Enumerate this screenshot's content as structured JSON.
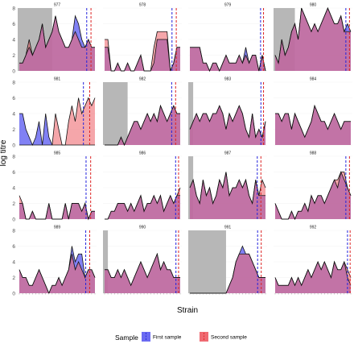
{
  "chart_data": {
    "type": "area",
    "xlabel": "Strain",
    "ylabel": "log titre",
    "ylim": [
      0,
      8
    ],
    "yticks": [
      0,
      2,
      4,
      6,
      8
    ],
    "legend": {
      "title": "Sample",
      "placement": "bottom",
      "entries": [
        {
          "name": "First sample",
          "fill": "#6b6bf2",
          "line": "#2c2cd6"
        },
        {
          "name": "Second sample",
          "fill": "#ef6a72",
          "line": "#e02a2a"
        }
      ]
    },
    "colors": {
      "overlap": "#a0336b",
      "shade": "#b7b7b7",
      "first_line": "#2222dd",
      "second_line": "#dd2222"
    },
    "n_strains": 24,
    "panels": [
      {
        "id": "977",
        "shade": [
          0,
          10
        ],
        "vline_first": 20.5,
        "vline_second": 21.8,
        "first": [
          1,
          1,
          2,
          3,
          2,
          3,
          4,
          6,
          3,
          4,
          5,
          7,
          5,
          4,
          3,
          3,
          4,
          7,
          6,
          4,
          3,
          4,
          3,
          3
        ],
        "second": [
          1,
          1,
          2,
          4,
          2,
          3,
          4,
          6,
          3,
          4,
          5,
          7,
          5,
          4,
          3,
          3,
          4,
          5,
          4,
          3,
          3,
          4,
          3,
          3
        ]
      },
      {
        "id": "978",
        "shade": null,
        "vline_first": 20.5,
        "vline_second": 21.8,
        "first": [
          3,
          3,
          0,
          0,
          1,
          0,
          0,
          1,
          0,
          0,
          1,
          2,
          0,
          0,
          0,
          1,
          4,
          4,
          4,
          4,
          0,
          1,
          3,
          3
        ],
        "second": [
          4,
          4,
          0,
          0,
          1,
          0,
          0,
          1,
          0,
          0,
          1,
          2,
          0,
          0,
          0,
          3,
          5,
          5,
          5,
          5,
          0,
          1,
          3,
          3
        ]
      },
      {
        "id": "979",
        "shade": null,
        "vline_first": 21.5,
        "vline_second": 22.4,
        "first": [
          3,
          3,
          3,
          3,
          1,
          1,
          0,
          1,
          1,
          0,
          1,
          2,
          1,
          1,
          1,
          2,
          1,
          3,
          1,
          2,
          2,
          0,
          2,
          0
        ],
        "second": [
          3,
          3,
          3,
          3,
          1,
          1,
          0,
          1,
          1,
          0,
          1,
          2,
          1,
          1,
          1,
          2,
          1,
          2,
          1,
          2,
          2,
          0,
          2,
          0
        ]
      },
      {
        "id": "980",
        "shade": [
          0,
          6
        ],
        "vline_first": 21.5,
        "vline_second": 22.6,
        "first": [
          2,
          1,
          4,
          2,
          3,
          5,
          6,
          4,
          8,
          7,
          6,
          5,
          6,
          5,
          6,
          7,
          8,
          7,
          6,
          6,
          7,
          5,
          6,
          5
        ],
        "second": [
          2,
          1,
          4,
          2,
          3,
          5,
          6,
          4,
          8,
          7,
          6,
          5,
          6,
          5,
          6,
          7,
          8,
          7,
          6,
          6,
          7,
          5,
          5,
          5
        ]
      },
      {
        "id": "981",
        "shade": null,
        "vline_first": 19.5,
        "vline_second": 21.4,
        "first": [
          4,
          4,
          2,
          1,
          0,
          1,
          3,
          0,
          4,
          1,
          0,
          0,
          0,
          0,
          0,
          0,
          0,
          0,
          0,
          0,
          0,
          0,
          0,
          0
        ],
        "second": [
          0,
          0,
          0,
          0,
          0,
          0,
          0,
          0,
          0,
          0,
          0,
          4,
          2,
          0,
          0,
          3,
          5,
          3,
          6,
          4,
          5,
          6,
          5,
          6
        ]
      },
      {
        "id": "982",
        "shade": [
          0,
          7
        ],
        "vline_first": 20.4,
        "vline_second": 21.6,
        "first": [
          0,
          0,
          0,
          0,
          0,
          1,
          0,
          1,
          2,
          3,
          3,
          2,
          3,
          4,
          3,
          4,
          3,
          5,
          4,
          3,
          4,
          5,
          4,
          4
        ],
        "second": [
          0,
          0,
          0,
          0,
          0,
          1,
          0,
          1,
          2,
          3,
          3,
          2,
          3,
          4,
          3,
          4,
          3,
          5,
          4,
          3,
          4,
          5,
          4,
          4
        ]
      },
      {
        "id": "983",
        "shade": [
          0,
          1
        ],
        "vline_first": 21.6,
        "vline_second": 22.4,
        "first": [
          2,
          3,
          4,
          3,
          4,
          4,
          3,
          4,
          4,
          5,
          4,
          2,
          4,
          3,
          4,
          5,
          4,
          2,
          1,
          4,
          1,
          2,
          1,
          3
        ],
        "second": [
          2,
          3,
          4,
          3,
          4,
          4,
          3,
          4,
          4,
          5,
          4,
          2,
          4,
          3,
          4,
          5,
          4,
          2,
          1,
          4,
          1,
          2,
          1,
          3
        ]
      },
      {
        "id": "984",
        "shade": null,
        "vline_first": null,
        "vline_second": null,
        "first": [
          4,
          4,
          3,
          4,
          4,
          2,
          4,
          3,
          2,
          1,
          2,
          3,
          5,
          4,
          3,
          3,
          2,
          3,
          4,
          3,
          2,
          3,
          3,
          3
        ],
        "second": [
          4,
          4,
          3,
          4,
          4,
          2,
          4,
          3,
          2,
          1,
          2,
          3,
          5,
          4,
          3,
          3,
          2,
          3,
          4,
          3,
          2,
          3,
          3,
          3
        ]
      },
      {
        "id": "985",
        "shade": null,
        "vline_first": 20.3,
        "vline_second": 21.7,
        "first": [
          2,
          2,
          0,
          0,
          1,
          0,
          0,
          0,
          0,
          2,
          0,
          0,
          0,
          0,
          2,
          0,
          2,
          2,
          2,
          1,
          2,
          0,
          1,
          1
        ],
        "second": [
          3,
          2,
          0,
          0,
          1,
          0,
          0,
          0,
          0,
          2,
          0,
          0,
          0,
          0,
          2,
          0,
          2,
          2,
          2,
          1,
          2,
          0,
          1,
          1
        ]
      },
      {
        "id": "986",
        "shade": null,
        "vline_first": 21.6,
        "vline_second": 22.5,
        "first": [
          0,
          0,
          1,
          1,
          2,
          2,
          2,
          1,
          2,
          1,
          2,
          3,
          1,
          2,
          2,
          3,
          2,
          3,
          1,
          2,
          3,
          2,
          3,
          3
        ],
        "second": [
          0,
          0,
          1,
          1,
          2,
          2,
          2,
          1,
          2,
          1,
          2,
          3,
          1,
          2,
          2,
          3,
          2,
          3,
          1,
          2,
          3,
          2,
          3,
          4
        ]
      },
      {
        "id": "987",
        "shade": [
          0,
          1
        ],
        "vline_first": 20.5,
        "vline_second": 21.6,
        "first": [
          4,
          5,
          3,
          2,
          5,
          3,
          4,
          2,
          3,
          5,
          4,
          6,
          3,
          4,
          4,
          5,
          4,
          5,
          3,
          2,
          5,
          3,
          3,
          3
        ],
        "second": [
          4,
          5,
          3,
          2,
          5,
          3,
          4,
          2,
          3,
          5,
          4,
          6,
          3,
          4,
          4,
          5,
          4,
          5,
          3,
          2,
          5,
          3,
          5,
          4
        ]
      },
      {
        "id": "988",
        "shade": null,
        "vline_first": 21.5,
        "vline_second": 22.6,
        "first": [
          2,
          1,
          0,
          0,
          0,
          1,
          0,
          1,
          1,
          2,
          1,
          3,
          2,
          3,
          3,
          2,
          3,
          4,
          5,
          4,
          6,
          5,
          4,
          3
        ],
        "second": [
          2,
          1,
          0,
          0,
          0,
          1,
          0,
          1,
          1,
          2,
          1,
          3,
          2,
          3,
          3,
          2,
          3,
          4,
          5,
          5,
          6,
          6,
          4,
          3
        ]
      },
      {
        "id": "989",
        "shade": null,
        "vline_first": 20.2,
        "vline_second": 21.4,
        "first": [
          3,
          2,
          2,
          1,
          1,
          2,
          3,
          2,
          1,
          0,
          1,
          1,
          2,
          1,
          2,
          3,
          6,
          4,
          5,
          5,
          2,
          3,
          3,
          2
        ],
        "second": [
          3,
          2,
          2,
          1,
          1,
          2,
          3,
          2,
          1,
          0,
          1,
          1,
          2,
          1,
          2,
          3,
          5,
          3,
          4,
          3,
          2,
          3,
          3,
          2
        ]
      },
      {
        "id": "990",
        "shade": [
          0,
          1
        ],
        "vline_first": 21.7,
        "vline_second": 22.5,
        "first": [
          3,
          3,
          2,
          2,
          3,
          2,
          3,
          2,
          1,
          2,
          3,
          4,
          3,
          2,
          3,
          4,
          5,
          3,
          4,
          3,
          3,
          2,
          2,
          2
        ],
        "second": [
          3,
          3,
          2,
          2,
          3,
          2,
          3,
          2,
          1,
          2,
          3,
          4,
          3,
          2,
          3,
          4,
          5,
          3,
          4,
          3,
          3,
          2,
          2,
          2
        ]
      },
      {
        "id": "991",
        "shade": [
          0,
          11
        ],
        "vline_first": 20.6,
        "vline_second": 21.7,
        "first": [
          0,
          0,
          0,
          0,
          0,
          0,
          0,
          0,
          0,
          0,
          0,
          0,
          1,
          2,
          4,
          5,
          6,
          5,
          5,
          4,
          3,
          2,
          2,
          2
        ],
        "second": [
          0,
          0,
          0,
          0,
          0,
          0,
          0,
          0,
          0,
          0,
          0,
          0,
          1,
          2,
          4,
          5,
          5,
          5,
          5,
          4,
          3,
          2,
          2,
          2
        ]
      },
      {
        "id": "992",
        "shade": null,
        "vline_first": 22.0,
        "vline_second": 22.8,
        "first": [
          2,
          1,
          1,
          1,
          1,
          2,
          1,
          2,
          1,
          2,
          3,
          2,
          3,
          4,
          3,
          4,
          3,
          2,
          4,
          3,
          3,
          4,
          2,
          1
        ],
        "second": [
          2,
          1,
          1,
          1,
          1,
          2,
          1,
          2,
          1,
          2,
          3,
          2,
          3,
          4,
          3,
          4,
          3,
          2,
          4,
          3,
          3,
          4,
          3,
          2
        ]
      }
    ]
  }
}
